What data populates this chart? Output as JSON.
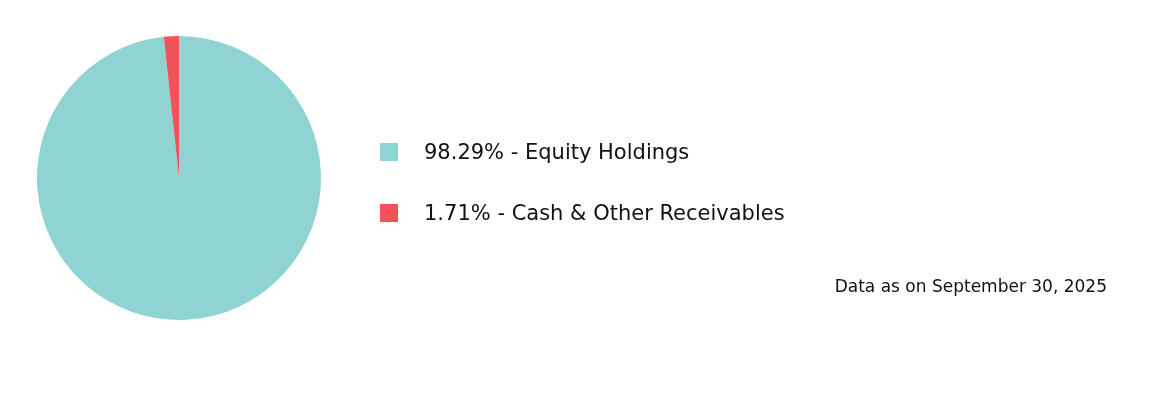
{
  "chart_data": {
    "type": "pie",
    "categories": [
      "98.29% - Equity Holdings",
      "1.71% - Cash & Other Receivables"
    ],
    "values": [
      98.29,
      1.71
    ],
    "colors": [
      "#8fd4d2",
      "#f2525a"
    ],
    "legend": "right",
    "annotations": [
      "Data as on September 30, 2025"
    ]
  }
}
